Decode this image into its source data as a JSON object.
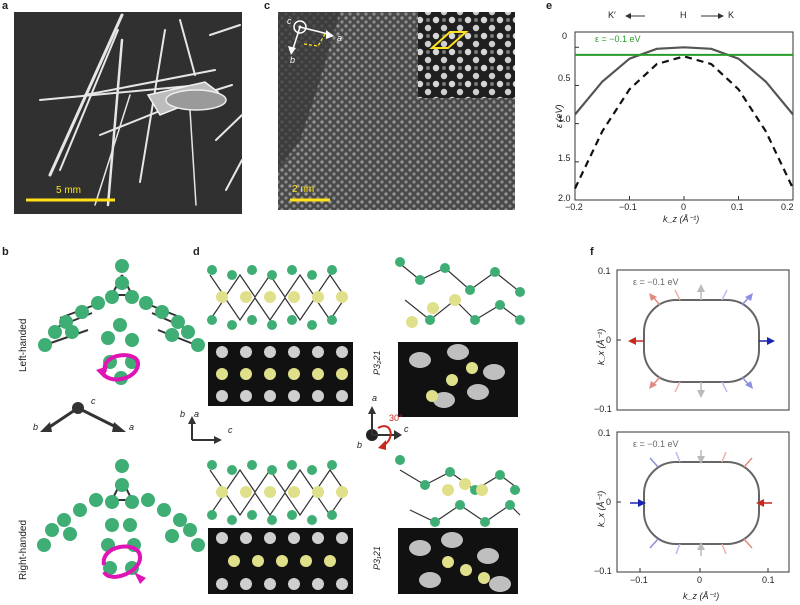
{
  "panels": {
    "a": {
      "label": "a",
      "scalebar": "5 mm"
    },
    "b": {
      "label": "b",
      "left": "Left-handed",
      "right": "Right-handed",
      "axes": {
        "a": "a",
        "b": "b",
        "c": "c"
      }
    },
    "c": {
      "label": "c",
      "scalebar": "2 nm",
      "axes": {
        "a": "a",
        "b": "b",
        "c": "c"
      }
    },
    "d": {
      "label": "d",
      "space_group_top": "P3₂21",
      "space_group_bottom": "P3₁21",
      "axes": {
        "a": "a",
        "b": "b",
        "c": "c"
      },
      "rotation": "30°"
    },
    "e": {
      "label": "e",
      "header_left": "K′",
      "header_mid": "H",
      "header_right": "K",
      "energy_label": "ε = −0.1 eV"
    },
    "f": {
      "label": "f",
      "energy_label_top": "ε = −0.1 eV",
      "energy_label_bottom": "ε = −0.1 eV"
    }
  },
  "colors": {
    "green_atom": "#3fae75",
    "yellow_atom": "#e0e08a",
    "magenta": "#e014b4",
    "scale_yellow": "#ffe21a",
    "line_green": "#2a9b2a",
    "red": "#c8281e",
    "blue": "#1b24b0"
  },
  "chart_data": [
    {
      "type": "line",
      "panel": "e",
      "xlabel": "k_z (Å⁻¹)",
      "ylabel": "ε (eV)",
      "xlim": [
        -0.2,
        0.2
      ],
      "ylim": [
        2.0,
        -0.2
      ],
      "xticks": [
        "−0.2",
        "−0.1",
        "0",
        "0.1",
        "0.2"
      ],
      "yticks": [
        "0",
        "0.5",
        "1.0",
        "1.5",
        "2.0"
      ],
      "series": [
        {
          "style": "solid",
          "x": [
            -0.2,
            -0.15,
            -0.1,
            -0.05,
            0,
            0.05,
            0.1,
            0.15,
            0.2
          ],
          "y": [
            0.88,
            0.45,
            0.15,
            0.02,
            0.0,
            0.02,
            0.15,
            0.45,
            0.88
          ]
        },
        {
          "style": "dashed",
          "x": [
            -0.2,
            -0.15,
            -0.1,
            -0.05,
            0,
            0.05,
            0.1,
            0.15,
            0.2
          ],
          "y": [
            1.85,
            1.1,
            0.55,
            0.22,
            0.12,
            0.22,
            0.55,
            1.1,
            1.85
          ]
        },
        {
          "style": "hline",
          "y": 0.1
        }
      ]
    },
    {
      "type": "line",
      "panel": "f",
      "xlabel": "k_z (Å⁻¹)",
      "ylabel": "k_x (Å⁻¹)",
      "xlim": [
        -0.12,
        0.12
      ],
      "ylim": [
        -0.1,
        0.1
      ],
      "xticks": [
        "−0.1",
        "0",
        "0.1"
      ],
      "yticks": [
        "0.1",
        "0",
        "−0.1"
      ]
    }
  ]
}
